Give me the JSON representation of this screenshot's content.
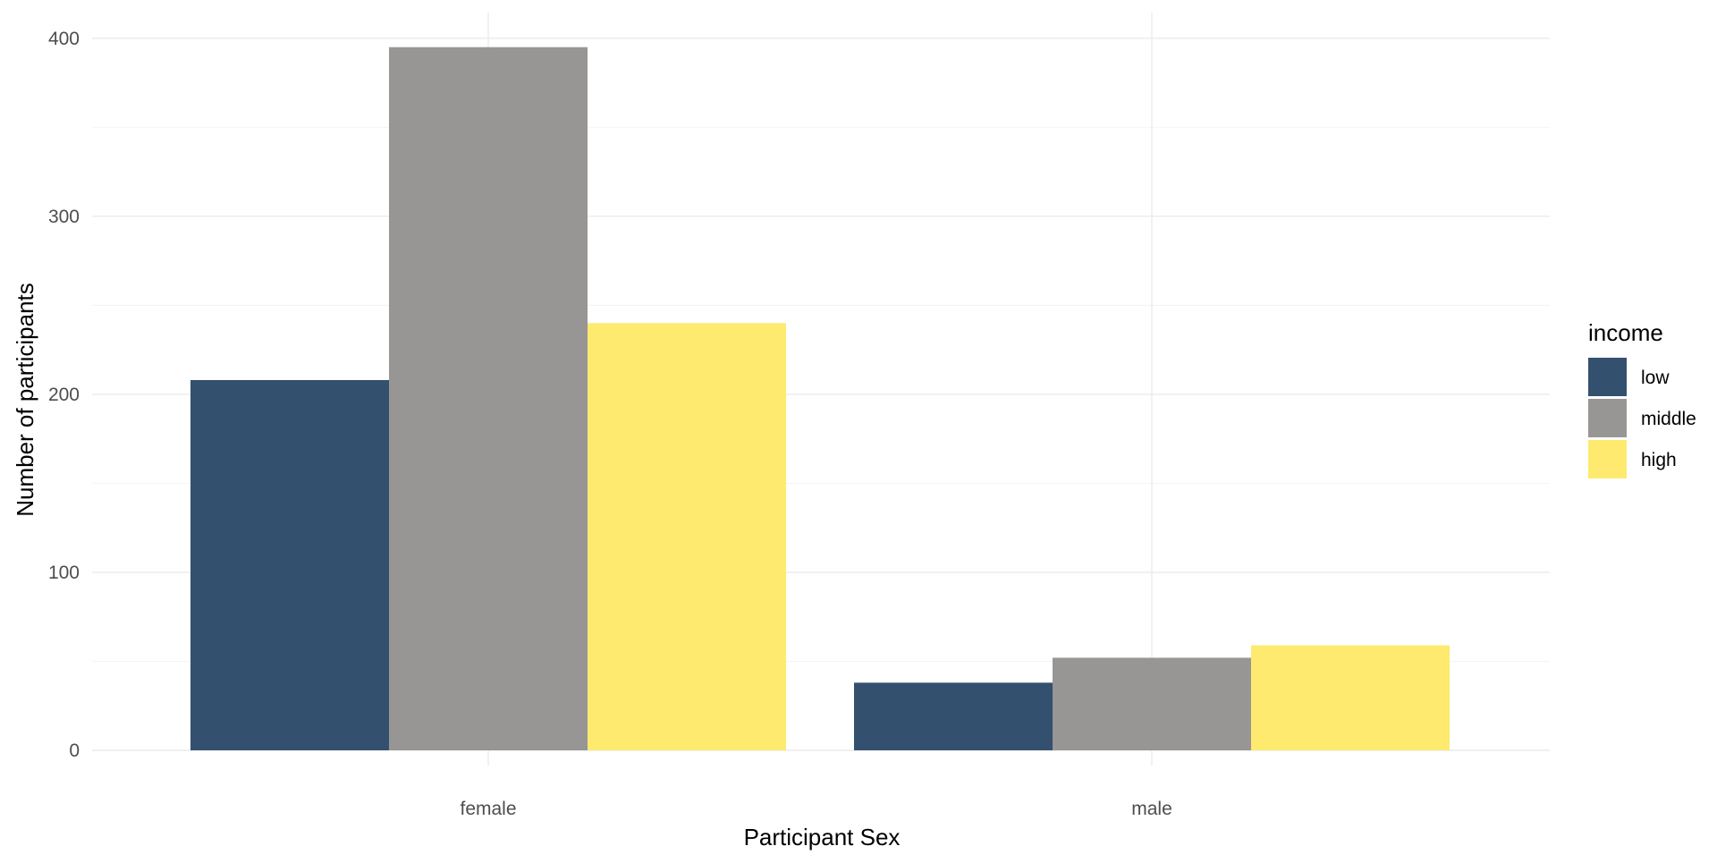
{
  "chart_data": {
    "type": "bar",
    "title": "",
    "xlabel": "Participant Sex",
    "ylabel": "Number of participants",
    "categories": [
      "female",
      "male"
    ],
    "series": [
      {
        "name": "low",
        "values": [
          208,
          38
        ],
        "color": "#34506F"
      },
      {
        "name": "middle",
        "values": [
          395,
          52
        ],
        "color": "#979695"
      },
      {
        "name": "high",
        "values": [
          240,
          59
        ],
        "color": "#FEEA6E"
      }
    ],
    "ylim": [
      0,
      410
    ],
    "yticks": [
      0,
      100,
      200,
      300,
      400
    ],
    "grid": true,
    "legend": {
      "title": "income",
      "position": "right"
    }
  }
}
